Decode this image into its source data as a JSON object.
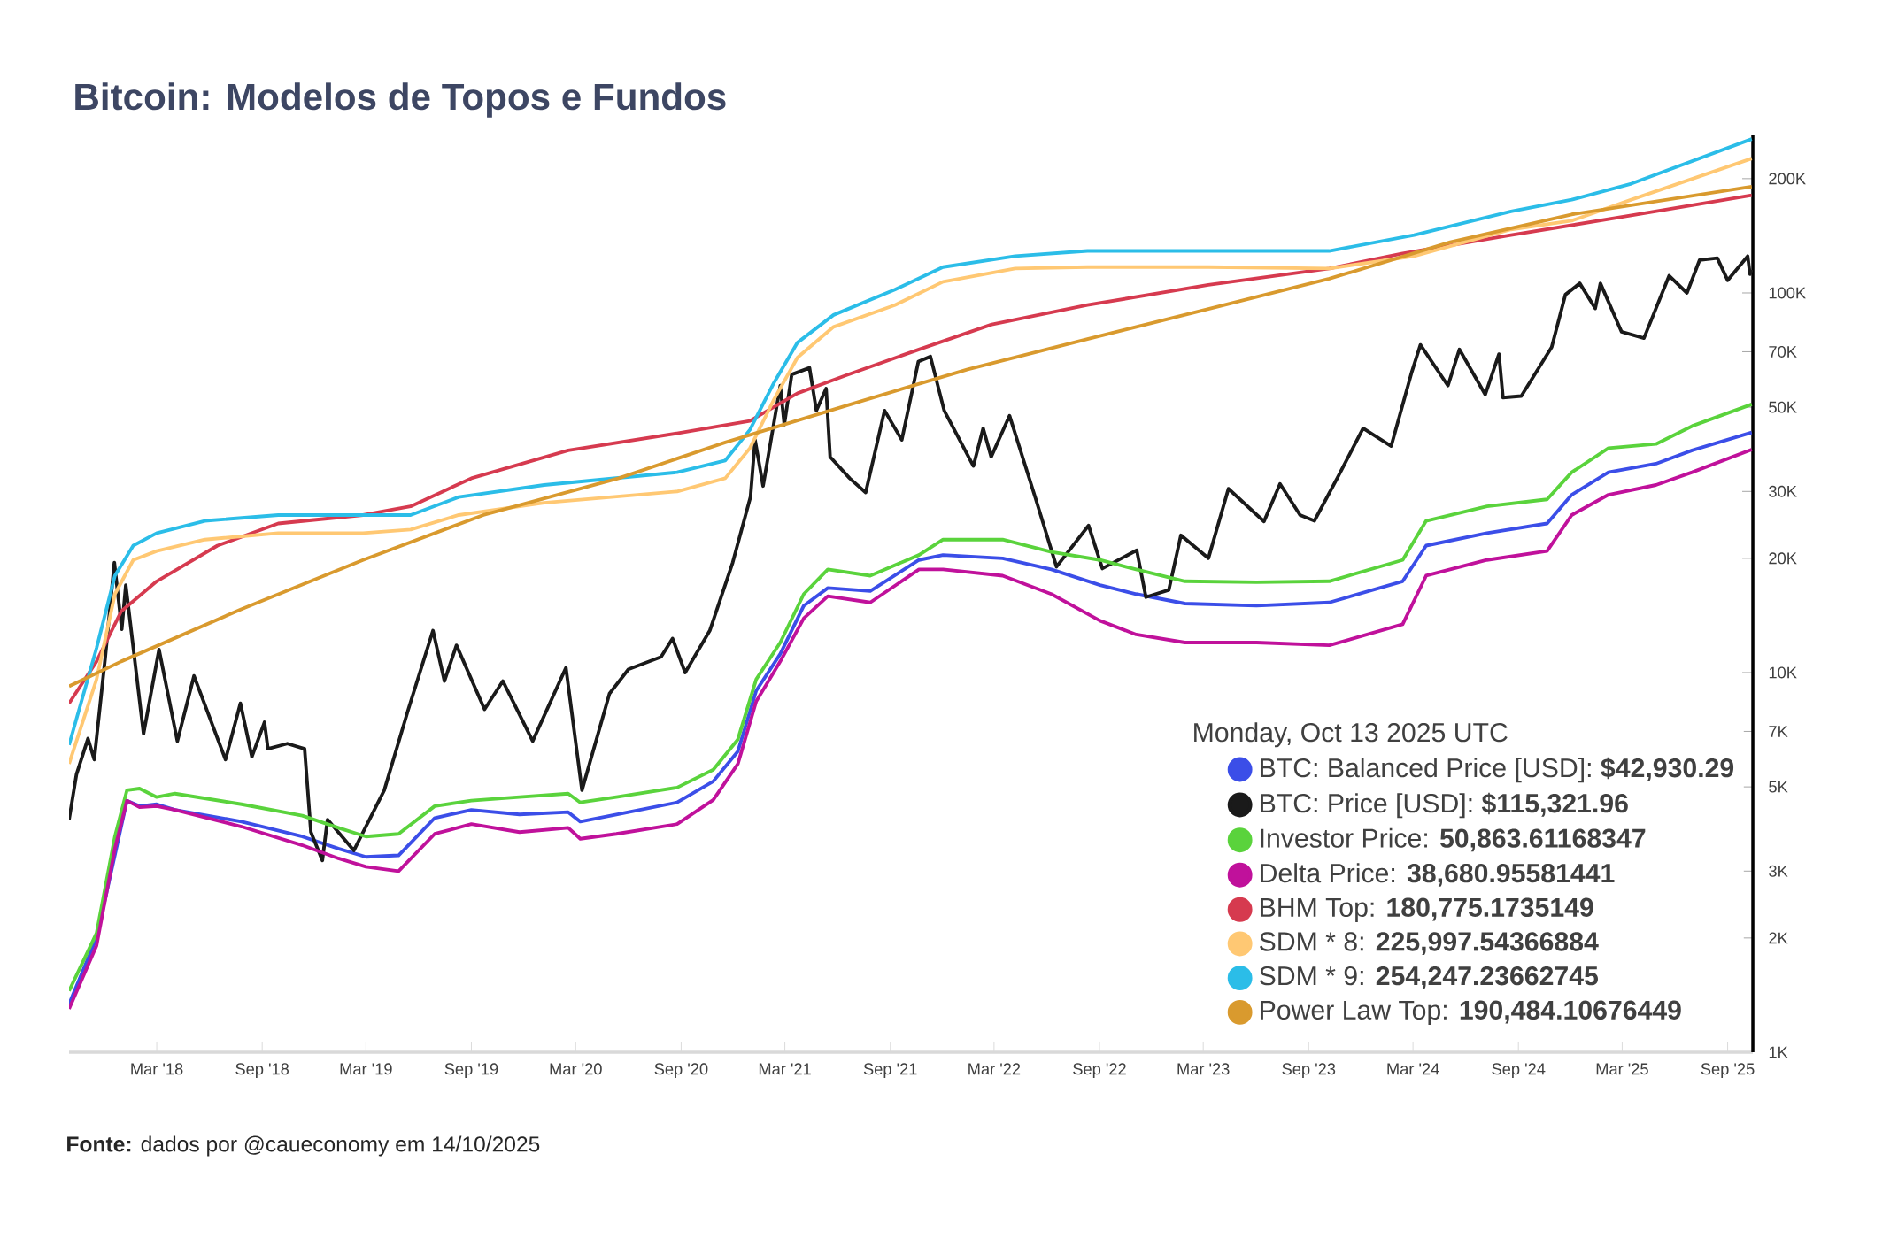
{
  "chart_data": {
    "type": "line",
    "title": "Bitcoin: Modelos de Topos e Fundos",
    "annotations": [
      "**Fonte:** dados por @caueconomy em 14/10/2025"
    ],
    "legend_title": "Monday, Oct 13 2025 UTC",
    "legend": "bottom right",
    "log": true,
    "xlim": [
      "2017-09-29",
      "2025-10-15"
    ],
    "ylim": [
      1000,
      260000
    ],
    "xticks": [
      {
        "value": "2018-03-01",
        "label": "Mar '18"
      },
      {
        "value": "2018-09-01",
        "label": "Sep '18"
      },
      {
        "value": "2019-03-01",
        "label": "Mar '19"
      },
      {
        "value": "2019-09-01",
        "label": "Sep '19"
      },
      {
        "value": "2020-03-01",
        "label": "Mar '20"
      },
      {
        "value": "2020-09-01",
        "label": "Sep '20"
      },
      {
        "value": "2021-03-01",
        "label": "Mar '21"
      },
      {
        "value": "2021-09-01",
        "label": "Sep '21"
      },
      {
        "value": "2022-03-01",
        "label": "Mar '22"
      },
      {
        "value": "2022-09-01",
        "label": "Sep '22"
      },
      {
        "value": "2023-03-01",
        "label": "Mar '23"
      },
      {
        "value": "2023-09-01",
        "label": "Sep '23"
      },
      {
        "value": "2024-03-01",
        "label": "Mar '24"
      },
      {
        "value": "2024-09-01",
        "label": "Sep '24"
      },
      {
        "value": "2025-03-01",
        "label": "Mar '25"
      },
      {
        "value": "2025-09-01",
        "label": "Sep '25"
      }
    ],
    "yticks": [
      {
        "value": 1000,
        "label": "1K"
      },
      {
        "value": 2000,
        "label": "2K"
      },
      {
        "value": 3000,
        "label": "3K"
      },
      {
        "value": 5000,
        "label": "5K"
      },
      {
        "value": 7000,
        "label": "7K"
      },
      {
        "value": 10000,
        "label": "10K"
      },
      {
        "value": 20000,
        "label": "20K"
      },
      {
        "value": 30000,
        "label": "30K"
      },
      {
        "value": 50000,
        "label": "50K"
      },
      {
        "value": 70000,
        "label": "70K"
      },
      {
        "value": 100000,
        "label": "100K"
      },
      {
        "value": 200000,
        "label": "200K"
      }
    ],
    "x": [
      "2017-09-29",
      "2017-11-16",
      "2017-12-18",
      "2018-01-08",
      "2018-01-30",
      "2018-03-01",
      "2018-04-02",
      "2018-07-27",
      "2018-11-10",
      "2019-01-12",
      "2019-03-01",
      "2019-04-27",
      "2019-06-29",
      "2019-09-01",
      "2019-11-24",
      "2020-02-17",
      "2020-03-09",
      "2020-05-11",
      "2020-08-25",
      "2020-10-27",
      "2020-12-09",
      "2021-01-10",
      "2021-02-21",
      "2021-04-03",
      "2021-05-15",
      "2021-07-28",
      "2021-10-21",
      "2021-12-02",
      "2022-03-16",
      "2022-06-09",
      "2022-09-02",
      "2022-11-04",
      "2023-01-28",
      "2023-06-02",
      "2023-10-07",
      "2024-02-12",
      "2024-03-24",
      "2024-07-08",
      "2024-10-21",
      "2024-12-03",
      "2025-02-05",
      "2025-04-29",
      "2025-07-01",
      "2025-10-13"
    ],
    "series": [
      {
        "name": "BTC: Balanced Price [USD]: **$42,930.29**",
        "color": "#3b4ee8",
        "values": [
          1340,
          2000,
          null,
          4600,
          4450,
          4500,
          4350,
          4050,
          3700,
          3440,
          3270,
          3300,
          4140,
          4350,
          4230,
          4290,
          4050,
          4230,
          4550,
          5170,
          6200,
          8960,
          11200,
          15000,
          16700,
          16400,
          19800,
          20400,
          20000,
          18700,
          17000,
          16100,
          15200,
          15000,
          15300,
          17400,
          21600,
          23300,
          24700,
          29400,
          33700,
          35500,
          38500,
          42930
        ]
      },
      {
        "name": "BTC: Price [USD]: **$115,321.96**",
        "color": "#1a1a1a",
        "x": [
          "2017-09-29",
          "2017-10-12",
          "2017-11-01",
          "2017-11-12",
          "2017-12-01",
          "2017-12-17",
          "2017-12-30",
          "2018-01-06",
          "2018-02-06",
          "2018-03-05",
          "2018-04-06",
          "2018-05-05",
          "2018-06-29",
          "2018-07-25",
          "2018-08-14",
          "2018-09-05",
          "2018-09-11",
          "2018-10-15",
          "2018-11-14",
          "2018-11-25",
          "2018-12-15",
          "2018-12-24",
          "2019-02-08",
          "2019-04-02",
          "2019-05-14",
          "2019-06-26",
          "2019-07-16",
          "2019-08-06",
          "2019-09-24",
          "2019-10-26",
          "2019-12-17",
          "2020-02-13",
          "2020-03-12",
          "2020-04-29",
          "2020-06-01",
          "2020-07-28",
          "2020-08-17",
          "2020-09-08",
          "2020-10-21",
          "2020-11-30",
          "2020-12-31",
          "2021-01-08",
          "2021-01-22",
          "2021-02-21",
          "2021-02-28",
          "2021-03-13",
          "2021-04-13",
          "2021-04-25",
          "2021-05-12",
          "2021-05-19",
          "2021-06-22",
          "2021-07-20",
          "2021-08-22",
          "2021-09-21",
          "2021-10-20",
          "2021-11-10",
          "2021-12-04",
          "2022-01-24",
          "2022-02-10",
          "2022-02-24",
          "2022-03-28",
          "2022-05-12",
          "2022-06-18",
          "2022-08-13",
          "2022-09-06",
          "2022-11-05",
          "2022-11-21",
          "2022-12-31",
          "2023-01-21",
          "2023-03-10",
          "2023-04-14",
          "2023-06-15",
          "2023-07-13",
          "2023-08-17",
          "2023-09-11",
          "2023-10-23",
          "2023-12-05",
          "2024-01-23",
          "2024-02-28",
          "2024-03-14",
          "2024-05-01",
          "2024-05-21",
          "2024-07-05",
          "2024-07-29",
          "2024-08-05",
          "2024-09-06",
          "2024-10-29",
          "2024-11-22",
          "2024-12-17",
          "2025-01-13",
          "2025-01-22",
          "2025-02-28",
          "2025-04-08",
          "2025-05-22",
          "2025-06-22",
          "2025-07-14",
          "2025-08-14",
          "2025-09-01",
          "2025-10-06",
          "2025-10-10",
          "2025-10-13"
        ],
        "values": [
          4100,
          5400,
          6700,
          5900,
          10900,
          19500,
          13000,
          17000,
          6900,
          11500,
          6600,
          9800,
          5900,
          8300,
          6000,
          7400,
          6300,
          6500,
          6300,
          3800,
          3200,
          4100,
          3400,
          4900,
          8000,
          12900,
          9500,
          11800,
          8000,
          9500,
          6600,
          10300,
          4900,
          8800,
          10200,
          11000,
          12300,
          10000,
          12900,
          19500,
          29000,
          41000,
          31000,
          57000,
          45000,
          61000,
          63500,
          49000,
          56000,
          37000,
          32500,
          29800,
          49000,
          41000,
          66000,
          68000,
          49000,
          35000,
          44000,
          37000,
          47500,
          28900,
          19000,
          24400,
          18800,
          21000,
          15800,
          16500,
          23000,
          20000,
          30500,
          25000,
          31400,
          26000,
          25100,
          33000,
          44000,
          39500,
          62000,
          73000,
          57000,
          71000,
          54000,
          69000,
          53000,
          53500,
          72000,
          99000,
          106000,
          91000,
          106000,
          79000,
          76000,
          111000,
          100000,
          122000,
          123500,
          108000,
          125000,
          112000,
          115322
        ]
      },
      {
        "name": "Investor Price: **50,863.61168347**",
        "color": "#5ad33c",
        "values": [
          1450,
          2060,
          3700,
          4900,
          4950,
          4700,
          4800,
          4500,
          4200,
          3900,
          3700,
          3760,
          4450,
          4600,
          4700,
          4800,
          4550,
          4700,
          4980,
          5550,
          6670,
          9600,
          12000,
          16100,
          18700,
          18000,
          20400,
          22400,
          22400,
          20800,
          19800,
          18700,
          17400,
          17300,
          17400,
          19800,
          25100,
          27400,
          28600,
          33700,
          39000,
          40000,
          44600,
          50864
        ]
      },
      {
        "name": "Delta Price: **38,680.95581441**",
        "color": "#c0119b",
        "values": [
          1300,
          1910,
          3440,
          4600,
          4420,
          4450,
          4350,
          3930,
          3510,
          3240,
          3080,
          3000,
          3760,
          3990,
          3800,
          3900,
          3650,
          3760,
          3990,
          4620,
          5750,
          8400,
          10700,
          13900,
          15900,
          15300,
          18700,
          18700,
          18000,
          16100,
          13700,
          12600,
          12000,
          12000,
          11800,
          13400,
          18000,
          19800,
          20900,
          26000,
          29400,
          31200,
          33700,
          38681
        ]
      },
      {
        "name": "BHM Top: **180,775.1735149**",
        "color": "#d63a4f",
        "x": [
          "2017-09-29",
          "2017-11-16",
          "2017-12-29",
          "2018-03-01",
          "2018-06-15",
          "2018-09-29",
          "2019-02-24",
          "2019-05-18",
          "2019-09-01",
          "2020-02-17",
          "2020-08-25",
          "2020-12-30",
          "2021-03-23",
          "2021-06-16",
          "2021-10-21",
          "2022-02-25",
          "2022-08-11",
          "2023-03-10",
          "2023-10-07",
          "2024-02-12",
          "2024-08-19",
          "2025-03-17",
          "2025-10-13"
        ],
        "values": [
          8300,
          10700,
          14500,
          17400,
          21600,
          24700,
          26000,
          27400,
          32500,
          38500,
          42700,
          46000,
          54400,
          60700,
          71000,
          82600,
          92900,
          105000,
          116000,
          127000,
          142000,
          160000,
          180775
        ]
      },
      {
        "name": "SDM * 8: **225,997.54366884**",
        "color": "#ffc873",
        "x": [
          "2017-09-29",
          "2017-11-16",
          "2017-12-18",
          "2018-01-19",
          "2018-03-01",
          "2018-05-24",
          "2018-09-29",
          "2019-02-24",
          "2019-05-18",
          "2019-08-10",
          "2020-01-06",
          "2020-08-25",
          "2020-11-17",
          "2020-12-30",
          "2021-02-10",
          "2021-03-23",
          "2021-05-25",
          "2021-09-09",
          "2021-12-02",
          "2022-04-07",
          "2022-08-11",
          "2023-03-10",
          "2023-10-07",
          "2024-03-03",
          "2024-08-19",
          "2024-12-03",
          "2025-03-17",
          "2025-10-13"
        ],
        "values": [
          5750,
          9600,
          16100,
          19800,
          20900,
          22400,
          23300,
          23300,
          23800,
          26000,
          28000,
          30000,
          32500,
          39000,
          52400,
          67600,
          81400,
          92900,
          107000,
          116000,
          117000,
          117000,
          116000,
          125000,
          147000,
          155000,
          176000,
          225998
        ]
      },
      {
        "name": "SDM * 9: **254,247.23662745**",
        "color": "#2bbde8",
        "x": [
          "2017-09-29",
          "2017-11-16",
          "2017-12-18",
          "2018-01-19",
          "2018-03-01",
          "2018-05-24",
          "2018-09-29",
          "2019-02-24",
          "2019-05-18",
          "2019-08-10",
          "2020-01-06",
          "2020-08-25",
          "2020-11-17",
          "2020-12-30",
          "2021-02-10",
          "2021-03-23",
          "2021-05-25",
          "2021-09-09",
          "2021-12-02",
          "2022-04-07",
          "2022-08-11",
          "2023-03-10",
          "2023-10-07",
          "2024-03-03",
          "2024-08-19",
          "2024-12-03",
          "2025-03-17",
          "2025-10-13"
        ],
        "values": [
          6450,
          11600,
          18000,
          21600,
          23300,
          25100,
          26000,
          26000,
          26000,
          29000,
          31200,
          33700,
          36200,
          43600,
          58000,
          74000,
          87500,
          102000,
          117000,
          125000,
          129000,
          129000,
          129000,
          142000,
          164000,
          176000,
          194000,
          254247
        ]
      },
      {
        "name": "Power Law Top: **190,484.10676449**",
        "color": "#d99a2e",
        "x": [
          "2017-09-29",
          "2017-12-29",
          "2018-07-27",
          "2019-02-24",
          "2019-09-22",
          "2020-05-15",
          "2020-11-17",
          "2021-06-16",
          "2022-01-14",
          "2022-08-11",
          "2023-03-10",
          "2023-10-07",
          "2024-05-05",
          "2024-12-03",
          "2025-10-13"
        ],
        "values": [
          9200,
          10700,
          14700,
          19800,
          26000,
          32500,
          40400,
          50500,
          62900,
          75600,
          90700,
          109000,
          136000,
          161000,
          190484
        ]
      }
    ]
  }
}
